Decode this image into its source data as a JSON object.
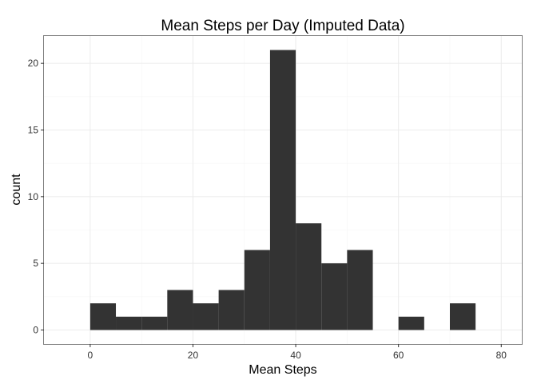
{
  "chart_data": {
    "type": "bar",
    "title": "Mean Steps per Day (Imputed Data)",
    "xlabel": "Mean Steps",
    "ylabel": "count",
    "binwidth": 5,
    "bins": [
      {
        "start": 0,
        "end": 5,
        "count": 2
      },
      {
        "start": 5,
        "end": 10,
        "count": 1
      },
      {
        "start": 10,
        "end": 15,
        "count": 1
      },
      {
        "start": 15,
        "end": 20,
        "count": 3
      },
      {
        "start": 20,
        "end": 25,
        "count": 2
      },
      {
        "start": 25,
        "end": 30,
        "count": 3
      },
      {
        "start": 30,
        "end": 35,
        "count": 6
      },
      {
        "start": 35,
        "end": 40,
        "count": 21
      },
      {
        "start": 40,
        "end": 45,
        "count": 8
      },
      {
        "start": 45,
        "end": 50,
        "count": 5
      },
      {
        "start": 50,
        "end": 55,
        "count": 6
      },
      {
        "start": 55,
        "end": 60,
        "count": 0
      },
      {
        "start": 60,
        "end": 65,
        "count": 1
      },
      {
        "start": 65,
        "end": 70,
        "count": 0
      },
      {
        "start": 70,
        "end": 75,
        "count": 2
      }
    ],
    "xlim": [
      -9,
      84
    ],
    "ylim": [
      -1.05,
      22.05
    ],
    "xticks": [
      0,
      20,
      40,
      60,
      80
    ],
    "yticks": [
      0,
      5,
      10,
      15,
      20
    ],
    "grid": true,
    "colors": {
      "bar": "#333333",
      "panel_border": "#7f7f7f",
      "grid_major": "#ebebeb",
      "grid_minor": "#f5f5f5",
      "tick": "#333333"
    }
  }
}
